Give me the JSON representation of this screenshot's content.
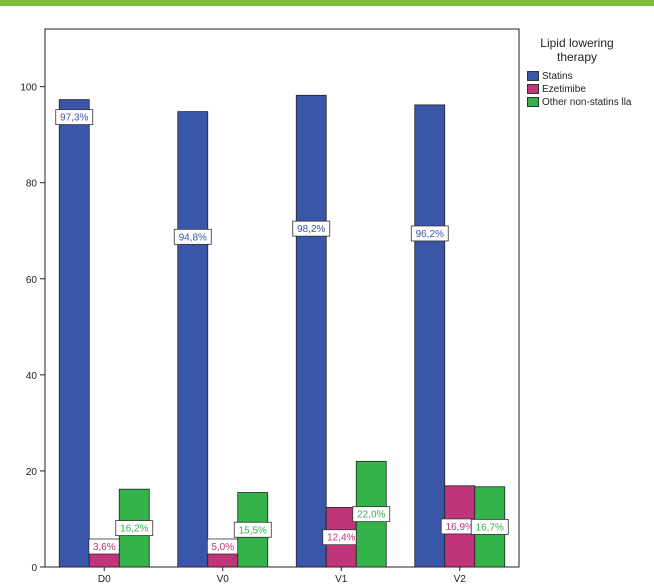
{
  "colors": {
    "top_bar": "#7bbf3a"
  },
  "legend": {
    "title": "Lipid lowering\ntherapy",
    "items": [
      {
        "label": "Statins",
        "color": "#3a56a8"
      },
      {
        "label": "Ezetimibe",
        "color": "#c0347a"
      },
      {
        "label": "Other non-statins lla",
        "color": "#34b34a"
      }
    ]
  },
  "chart_data": {
    "type": "bar",
    "title": "",
    "xlabel": "",
    "ylabel": "",
    "ylim": [
      0,
      112
    ],
    "yticks": [
      "0",
      "20",
      "40",
      "60",
      "80",
      "100"
    ],
    "grid": false,
    "legend_position": "right",
    "categories": [
      "D0",
      "V0",
      "V1",
      "V2"
    ],
    "series": [
      {
        "name": "Statins",
        "color": "#3a56a8",
        "values": [
          97.3,
          94.8,
          98.2,
          96.2
        ],
        "labels": [
          "97,3%",
          "94,8%",
          "98,2%",
          "96,2%"
        ]
      },
      {
        "name": "Ezetimibe",
        "color": "#c0347a",
        "values": [
          3.6,
          5.0,
          12.4,
          16.9
        ],
        "labels": [
          "3,6%",
          "5,0%",
          "12,4%",
          "16,9%"
        ]
      },
      {
        "name": "Other non-statins lla",
        "color": "#34b34a",
        "values": [
          16.2,
          15.5,
          22.0,
          16.7
        ],
        "labels": [
          "16,2%",
          "15,5%",
          "22,0%",
          "16,7%"
        ]
      }
    ]
  }
}
